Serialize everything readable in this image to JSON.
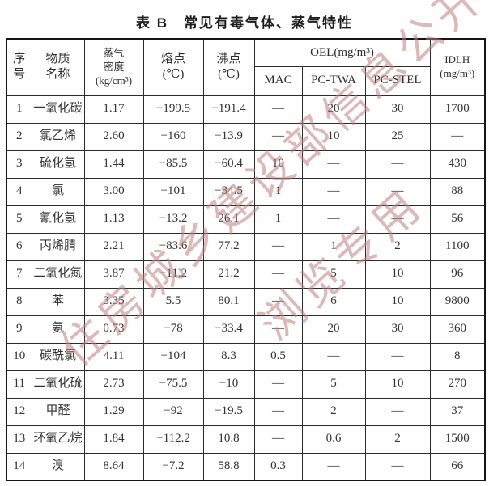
{
  "title": "表 B　常见有毒气体、蒸气特性",
  "watermark": {
    "line1": "住房城乡建设部信息公开",
    "line2": "浏览专用",
    "color": "#bd8080"
  },
  "table": {
    "headers": {
      "row_number": "序号",
      "substance": "物质\n名称",
      "vapor_density": "蒸气\n密度\n(kg/cm³)",
      "melting_point": "熔点\n(℃)",
      "boiling_point": "沸点\n(℃)",
      "oel_group": "OEL(mg/m³)",
      "mac": "MAC",
      "pc_twa": "PC-TWA",
      "pc_stel": "PC-STEL",
      "idlh": "IDLH\n(mg/m³)"
    },
    "cell_names": [
      "row-number-cell",
      "substance-name-cell",
      "vapor-density-cell",
      "melting-point-cell",
      "boiling-point-cell",
      "mac-cell",
      "pc-twa-cell",
      "pc-stel-cell",
      "idlh-cell"
    ],
    "rows": [
      [
        "1",
        "一氧化碳",
        "1.17",
        "−199.5",
        "−191.4",
        "—",
        "20",
        "30",
        "1700"
      ],
      [
        "2",
        "氯乙烯",
        "2.60",
        "−160",
        "−13.9",
        "—",
        "10",
        "25",
        "—"
      ],
      [
        "3",
        "硫化氢",
        "1.44",
        "−85.5",
        "−60.4",
        "10",
        "—",
        "—",
        "430"
      ],
      [
        "4",
        "氯",
        "3.00",
        "−101",
        "−34.5",
        "1",
        "—",
        "—",
        "88"
      ],
      [
        "5",
        "氰化氢",
        "1.13",
        "−13.2",
        "26.1",
        "1",
        "—",
        "—",
        "56"
      ],
      [
        "6",
        "丙烯腈",
        "2.21",
        "−83.6",
        "77.2",
        "—",
        "1",
        "2",
        "1100"
      ],
      [
        "7",
        "二氧化氮",
        "3.87",
        "−11.2",
        "21.2",
        "—",
        "5",
        "10",
        "96"
      ],
      [
        "8",
        "苯",
        "3.35",
        "5.5",
        "80.1",
        "—",
        "6",
        "10",
        "9800"
      ],
      [
        "9",
        "氨",
        "0.73",
        "−78",
        "−33.4",
        "—",
        "20",
        "30",
        "360"
      ],
      [
        "10",
        "碳酰氯",
        "4.11",
        "−104",
        "8.3",
        "0.5",
        "—",
        "—",
        "8"
      ],
      [
        "11",
        "二氧化硫",
        "2.73",
        "−75.5",
        "−10",
        "—",
        "5",
        "10",
        "270"
      ],
      [
        "12",
        "甲醛",
        "1.29",
        "−92",
        "−19.5",
        "—",
        "2",
        "—",
        "37"
      ],
      [
        "13",
        "环氧乙烷",
        "1.84",
        "−112.2",
        "10.8",
        "—",
        "0.6",
        "2",
        "1500"
      ],
      [
        "14",
        "溴",
        "8.64",
        "−7.2",
        "58.8",
        "0.3",
        "—",
        "—",
        "66"
      ]
    ]
  }
}
